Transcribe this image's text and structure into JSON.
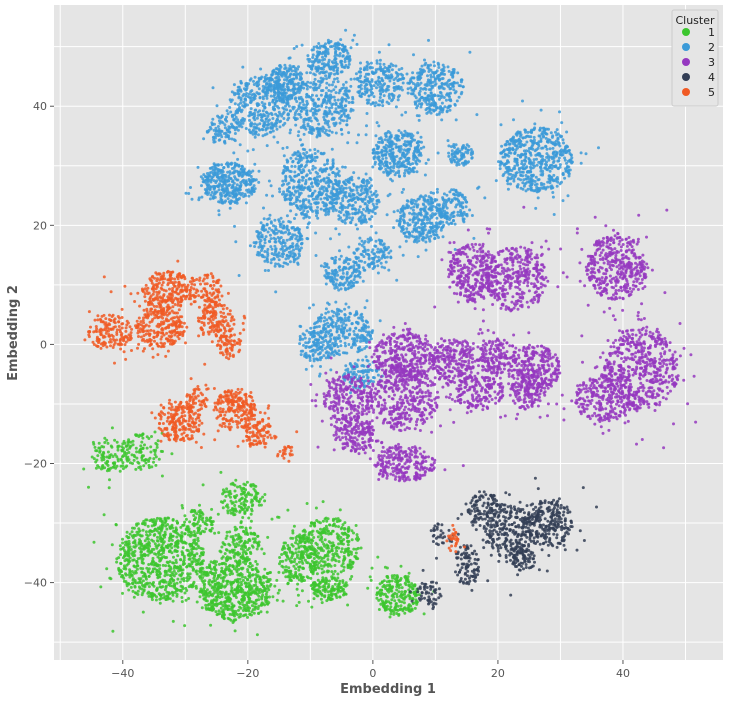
{
  "chart_data": {
    "type": "scatter",
    "title": "",
    "xlabel": "Embedding 1",
    "ylabel": "Embedding 2",
    "xlim": [
      -51,
      56
    ],
    "ylim": [
      -53,
      57
    ],
    "xticks": [
      -40,
      -20,
      0,
      20,
      40
    ],
    "yticks": [
      -40,
      -20,
      0,
      20,
      40
    ],
    "xtick_labels": [
      "−40",
      "−20",
      "0",
      "20",
      "40"
    ],
    "ytick_labels": [
      "−40",
      "−20",
      "0",
      "20",
      "40"
    ],
    "grid": true,
    "legend": {
      "title": "Cluster",
      "position": "top-right"
    },
    "series": [
      {
        "name": "1",
        "color": "#3cc62e",
        "clusters": [
          {
            "cx": -42,
            "cy": -19,
            "rx": 3,
            "ry": 3,
            "n": 170
          },
          {
            "cx": -37,
            "cy": -18,
            "rx": 3.5,
            "ry": 3,
            "n": 190
          },
          {
            "cx": -34,
            "cy": -36,
            "rx": 7,
            "ry": 7,
            "n": 1400
          },
          {
            "cx": -28,
            "cy": -30,
            "rx": 2.5,
            "ry": 2.5,
            "n": 140
          },
          {
            "cx": -22,
            "cy": -41,
            "rx": 6,
            "ry": 5.5,
            "n": 1100
          },
          {
            "cx": -21,
            "cy": -26,
            "rx": 3.5,
            "ry": 3,
            "n": 240
          },
          {
            "cx": -21,
            "cy": -33,
            "rx": 3,
            "ry": 2.5,
            "n": 200
          },
          {
            "cx": -12,
            "cy": -36,
            "rx": 3,
            "ry": 4,
            "n": 300
          },
          {
            "cx": -7,
            "cy": -34,
            "rx": 5,
            "ry": 5,
            "n": 600
          },
          {
            "cx": -7,
            "cy": -41,
            "rx": 3,
            "ry": 2,
            "n": 250
          },
          {
            "cx": 4,
            "cy": -42,
            "rx": 3.5,
            "ry": 3.5,
            "n": 420
          }
        ]
      },
      {
        "name": "2",
        "color": "#3b9ad8",
        "clusters": [
          {
            "cx": -14,
            "cy": 44,
            "rx": 3,
            "ry": 3,
            "n": 360
          },
          {
            "cx": -7,
            "cy": 48,
            "rx": 3.5,
            "ry": 3,
            "n": 380
          },
          {
            "cx": -18,
            "cy": 40,
            "rx": 5,
            "ry": 5,
            "n": 700
          },
          {
            "cx": -8,
            "cy": 40,
            "rx": 5,
            "ry": 5,
            "n": 600
          },
          {
            "cx": 1,
            "cy": 44,
            "rx": 4,
            "ry": 4,
            "n": 420
          },
          {
            "cx": 10,
            "cy": 43,
            "rx": 4.5,
            "ry": 4.5,
            "n": 560
          },
          {
            "cx": -24,
            "cy": 36,
            "rx": 2.5,
            "ry": 2.5,
            "n": 150
          },
          {
            "cx": -23,
            "cy": 27,
            "rx": 4.5,
            "ry": 3.5,
            "n": 650
          },
          {
            "cx": -10,
            "cy": 27,
            "rx": 5,
            "ry": 6,
            "n": 800
          },
          {
            "cx": 4,
            "cy": 32,
            "rx": 4,
            "ry": 4,
            "n": 600
          },
          {
            "cx": 14,
            "cy": 32,
            "rx": 2,
            "ry": 2,
            "n": 140
          },
          {
            "cx": 26,
            "cy": 31,
            "rx": 6,
            "ry": 5.5,
            "n": 1000
          },
          {
            "cx": -3,
            "cy": 24,
            "rx": 4,
            "ry": 4,
            "n": 450
          },
          {
            "cx": 8,
            "cy": 21,
            "rx": 4,
            "ry": 4,
            "n": 550
          },
          {
            "cx": 13,
            "cy": 23,
            "rx": 2.5,
            "ry": 3,
            "n": 200
          },
          {
            "cx": -15,
            "cy": 17,
            "rx": 4,
            "ry": 4,
            "n": 450
          },
          {
            "cx": -5,
            "cy": 12,
            "rx": 3,
            "ry": 3,
            "n": 260
          },
          {
            "cx": -9,
            "cy": 0,
            "rx": 3,
            "ry": 3,
            "n": 200
          },
          {
            "cx": -5,
            "cy": 2,
            "rx": 5,
            "ry": 4,
            "n": 500
          },
          {
            "cx": -2,
            "cy": -5,
            "rx": 3,
            "ry": 2.5,
            "n": 180
          },
          {
            "cx": 0,
            "cy": 15,
            "rx": 3,
            "ry": 3,
            "n": 220
          }
        ]
      },
      {
        "name": "3",
        "color": "#9538c0",
        "clusters": [
          {
            "cx": 16,
            "cy": 12,
            "rx": 4,
            "ry": 5,
            "n": 550
          },
          {
            "cx": 23,
            "cy": 11,
            "rx": 5,
            "ry": 5.5,
            "n": 650
          },
          {
            "cx": 39,
            "cy": 13,
            "rx": 5,
            "ry": 5.5,
            "n": 750
          },
          {
            "cx": 5,
            "cy": -2,
            "rx": 5,
            "ry": 4,
            "n": 600
          },
          {
            "cx": 13,
            "cy": -3,
            "rx": 4,
            "ry": 4,
            "n": 450
          },
          {
            "cx": 20,
            "cy": -2,
            "rx": 3,
            "ry": 3,
            "n": 300
          },
          {
            "cx": 26,
            "cy": -4,
            "rx": 4,
            "ry": 4,
            "n": 450
          },
          {
            "cx": 43,
            "cy": -4,
            "rx": 6,
            "ry": 7,
            "n": 1000
          },
          {
            "cx": 37,
            "cy": -9,
            "rx": 5,
            "ry": 4,
            "n": 500
          },
          {
            "cx": 5,
            "cy": -9,
            "rx": 5.5,
            "ry": 5.5,
            "n": 700
          },
          {
            "cx": -4,
            "cy": -9,
            "rx": 4,
            "ry": 4,
            "n": 400
          },
          {
            "cx": -3,
            "cy": -15,
            "rx": 3.5,
            "ry": 3,
            "n": 320
          },
          {
            "cx": 17,
            "cy": -8,
            "rx": 4,
            "ry": 3,
            "n": 320
          },
          {
            "cx": 25,
            "cy": -8,
            "rx": 3,
            "ry": 3,
            "n": 260
          },
          {
            "cx": 5,
            "cy": -20,
            "rx": 5,
            "ry": 3,
            "n": 450
          }
        ]
      },
      {
        "name": "4",
        "color": "#323e55",
        "clusters": [
          {
            "cx": 18,
            "cy": -28,
            "rx": 3,
            "ry": 3,
            "n": 200
          },
          {
            "cx": 22,
            "cy": -31,
            "rx": 4,
            "ry": 5,
            "n": 450
          },
          {
            "cx": 28,
            "cy": -30,
            "rx": 4,
            "ry": 4,
            "n": 450
          },
          {
            "cx": 15,
            "cy": -37,
            "rx": 2,
            "ry": 3.5,
            "n": 170
          },
          {
            "cx": 24,
            "cy": -36,
            "rx": 2,
            "ry": 2,
            "n": 130
          },
          {
            "cx": 9,
            "cy": -42,
            "rx": 2,
            "ry": 2.5,
            "n": 100
          },
          {
            "cx": 11,
            "cy": -32,
            "rx": 2,
            "ry": 2,
            "n": 60
          }
        ]
      },
      {
        "name": "5",
        "color": "#f05a24",
        "clusters": [
          {
            "cx": -33,
            "cy": 9,
            "rx": 4,
            "ry": 3.5,
            "n": 420
          },
          {
            "cx": -27,
            "cy": 9,
            "rx": 3,
            "ry": 3,
            "n": 180
          },
          {
            "cx": -42,
            "cy": 2,
            "rx": 3.5,
            "ry": 3,
            "n": 280
          },
          {
            "cx": -34,
            "cy": 3,
            "rx": 4,
            "ry": 3.5,
            "n": 450
          },
          {
            "cx": -25,
            "cy": 4,
            "rx": 3,
            "ry": 3,
            "n": 260
          },
          {
            "cx": -23,
            "cy": 0,
            "rx": 2,
            "ry": 2,
            "n": 120
          },
          {
            "cx": -31,
            "cy": -13,
            "rx": 3.5,
            "ry": 3.5,
            "n": 380
          },
          {
            "cx": -22,
            "cy": -11,
            "rx": 3.5,
            "ry": 3.5,
            "n": 400
          },
          {
            "cx": -18,
            "cy": -15,
            "rx": 2.5,
            "ry": 2.5,
            "n": 170
          },
          {
            "cx": -28,
            "cy": -9,
            "rx": 2,
            "ry": 2,
            "n": 90
          },
          {
            "cx": -14,
            "cy": -18,
            "rx": 1.5,
            "ry": 1.5,
            "n": 40
          },
          {
            "cx": 13,
            "cy": -33,
            "rx": 1,
            "ry": 2,
            "n": 50
          }
        ]
      }
    ]
  }
}
